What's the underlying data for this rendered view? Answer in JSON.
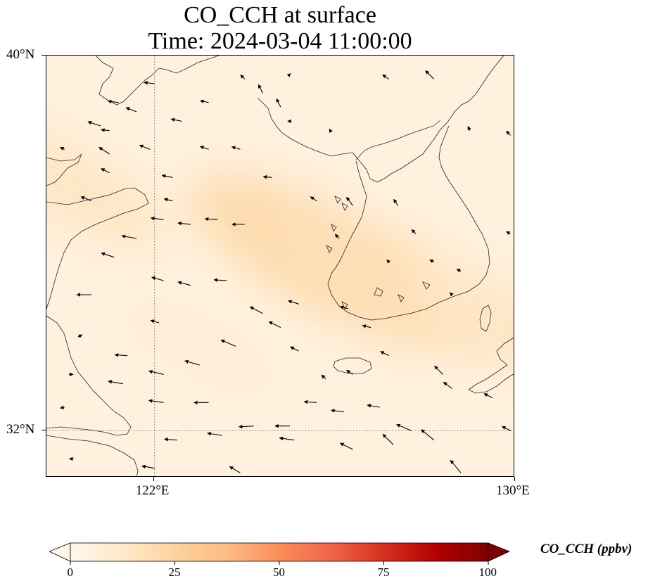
{
  "title": {
    "line1": "CO_CCH at surface",
    "line2": "Time: 2024-03-04 11:00:00"
  },
  "axes": {
    "lon_range": [
      119.6,
      130.0
    ],
    "lat_range": [
      31.0,
      40.0
    ],
    "lat_ticks": [
      {
        "value": 40,
        "label": "40°N"
      },
      {
        "value": 32,
        "label": "32°N"
      }
    ],
    "lon_ticks": [
      {
        "value": 122,
        "label": "122°E"
      },
      {
        "value": 130,
        "label": "130°E"
      }
    ],
    "gridlines": "dotted at 122°E and 32°N"
  },
  "colorbar": {
    "label": "CO_CCH (ppbv)",
    "min": 0,
    "max": 100,
    "extend": "both",
    "colormap": "OrRd",
    "ticks": [
      {
        "value": 0,
        "label": "0"
      },
      {
        "value": 25,
        "label": "25"
      },
      {
        "value": 50,
        "label": "50"
      },
      {
        "value": 75,
        "label": "75"
      },
      {
        "value": 100,
        "label": "100"
      }
    ],
    "colors": [
      "#fff7ec",
      "#fee8c8",
      "#fdd49e",
      "#fdbb84",
      "#fc8d59",
      "#ef6548",
      "#d7301f",
      "#b30000",
      "#7f0000"
    ]
  },
  "field": {
    "background_value": 5,
    "plumes": [
      {
        "lon": 125.9,
        "lat": 35.6,
        "peak": 22
      },
      {
        "lon": 127.5,
        "lat": 35.1,
        "peak": 18
      },
      {
        "lon": 120.0,
        "lat": 37.3,
        "peak": 14
      },
      {
        "lon": 129.8,
        "lat": 34.3,
        "peak": 13
      },
      {
        "lon": 123.0,
        "lat": 33.8,
        "peak": 8
      }
    ]
  },
  "wind_vectors": {
    "note": "",
    "arrows": [
      [
        121.6,
        36.1,
        -0.35,
        0.06
      ],
      [
        122.2,
        36.5,
        -0.3,
        0.04
      ],
      [
        122.8,
        36.4,
        -0.3,
        0.03
      ],
      [
        123.4,
        36.5,
        -0.3,
        0.02
      ],
      [
        124.0,
        36.4,
        -0.3,
        0.0
      ],
      [
        121.1,
        35.7,
        -0.3,
        0.1
      ],
      [
        122.2,
        35.2,
        -0.28,
        0.08
      ],
      [
        122.8,
        35.1,
        -0.3,
        0.08
      ],
      [
        123.6,
        35.2,
        -0.3,
        0.02
      ],
      [
        121.3,
        33.0,
        -0.35,
        0.06
      ],
      [
        122.2,
        33.2,
        -0.35,
        0.08
      ],
      [
        123.0,
        33.4,
        -0.35,
        0.1
      ],
      [
        123.8,
        33.8,
        -0.35,
        0.15
      ],
      [
        124.4,
        34.5,
        -0.3,
        0.16
      ],
      [
        124.8,
        34.2,
        -0.28,
        0.14
      ],
      [
        125.2,
        34.7,
        -0.25,
        0.08
      ],
      [
        121.4,
        33.6,
        -0.3,
        0.02
      ],
      [
        122.2,
        32.6,
        -0.35,
        0.05
      ],
      [
        123.2,
        32.6,
        -0.35,
        0.0
      ],
      [
        124.2,
        32.1,
        -0.35,
        -0.02
      ],
      [
        125.0,
        32.1,
        -0.35,
        0.0
      ],
      [
        125.6,
        32.6,
        -0.3,
        0.02
      ],
      [
        126.2,
        32.4,
        -0.3,
        0.04
      ],
      [
        127.0,
        32.5,
        -0.3,
        0.05
      ],
      [
        127.7,
        32.0,
        -0.35,
        0.15
      ],
      [
        128.2,
        31.8,
        -0.3,
        0.25
      ],
      [
        127.3,
        31.7,
        -0.25,
        0.25
      ],
      [
        126.4,
        31.6,
        -0.3,
        0.15
      ],
      [
        125.1,
        31.8,
        -0.35,
        0.05
      ],
      [
        123.5,
        31.9,
        -0.35,
        0.05
      ],
      [
        122.5,
        31.8,
        -0.3,
        0.02
      ],
      [
        122.0,
        31.2,
        -0.3,
        0.05
      ],
      [
        123.9,
        31.1,
        -0.25,
        0.15
      ],
      [
        128.8,
        31.1,
        -0.25,
        0.3
      ],
      [
        120.6,
        36.9,
        -0.25,
        0.1
      ],
      [
        120.8,
        38.5,
        -0.3,
        0.1
      ],
      [
        121.0,
        37.9,
        -0.25,
        0.16
      ],
      [
        121.6,
        38.8,
        -0.25,
        0.1
      ],
      [
        121.9,
        38.0,
        -0.25,
        0.1
      ],
      [
        121.2,
        39.0,
        -0.25,
        0.03
      ],
      [
        121.0,
        38.4,
        -0.2,
        0.02
      ],
      [
        122.0,
        39.4,
        -0.25,
        0.03
      ],
      [
        122.6,
        38.6,
        -0.25,
        0.05
      ],
      [
        123.2,
        38.0,
        -0.2,
        0.07
      ],
      [
        123.9,
        38.0,
        -0.2,
        0.06
      ],
      [
        124.6,
        37.4,
        -0.2,
        0.02
      ],
      [
        125.6,
        36.9,
        -0.15,
        0.1
      ],
      [
        126.1,
        36.1,
        -0.1,
        0.1
      ],
      [
        126.4,
        36.8,
        -0.15,
        0.2
      ],
      [
        127.4,
        36.8,
        -0.1,
        0.15
      ],
      [
        127.8,
        36.2,
        -0.1,
        0.1
      ],
      [
        128.2,
        35.6,
        -0.1,
        0.05
      ],
      [
        128.8,
        35.4,
        -0.1,
        0.05
      ],
      [
        128.6,
        34.9,
        -0.05,
        0.05
      ],
      [
        127.2,
        35.6,
        -0.05,
        0.05
      ],
      [
        126.3,
        34.6,
        -0.2,
        0.05
      ],
      [
        126.8,
        34.2,
        -0.2,
        0.05
      ],
      [
        127.2,
        33.6,
        -0.2,
        0.1
      ],
      [
        126.4,
        33.2,
        -0.15,
        0.1
      ],
      [
        125.2,
        33.7,
        -0.2,
        0.1
      ],
      [
        125.8,
        33.1,
        -0.1,
        0.1
      ],
      [
        128.4,
        33.2,
        -0.2,
        0.2
      ],
      [
        128.6,
        32.9,
        -0.2,
        0.15
      ],
      [
        129.5,
        32.7,
        -0.2,
        0.1
      ],
      [
        129.9,
        32.0,
        -0.2,
        0.1
      ],
      [
        129.9,
        36.2,
        -0.1,
        0.05
      ],
      [
        129.9,
        38.3,
        -0.1,
        0.1
      ],
      [
        129.0,
        38.4,
        -0.05,
        0.1
      ],
      [
        128.2,
        39.5,
        -0.2,
        0.2
      ],
      [
        127.2,
        39.5,
        -0.15,
        0.1
      ],
      [
        124.4,
        39.2,
        -0.1,
        0.2
      ],
      [
        124.8,
        38.9,
        -0.1,
        0.2
      ],
      [
        124.0,
        39.5,
        -0.1,
        0.1
      ],
      [
        125.0,
        39.6,
        0.02,
        0.02
      ],
      [
        120.1,
        33.2,
        0.1,
        0.0
      ],
      [
        120.3,
        34.0,
        0.1,
        0.05
      ],
      [
        120.0,
        32.5,
        -0.1,
        -0.02
      ],
      [
        120.2,
        31.4,
        -0.1,
        0.0
      ],
      [
        122.1,
        34.3,
        -0.2,
        0.06
      ],
      [
        120.6,
        34.9,
        -0.35,
        0.0
      ],
      [
        125.0,
        38.6,
        -0.05,
        0.0
      ],
      [
        125.9,
        38.4,
        -0.02,
        0.04
      ],
      [
        123.2,
        39.0,
        -0.2,
        0.04
      ],
      [
        122.4,
        37.4,
        -0.25,
        0.05
      ],
      [
        121.0,
        37.5,
        -0.2,
        0.1
      ],
      [
        122.4,
        36.9,
        -0.2,
        0.05
      ],
      [
        120.0,
        38.0,
        -0.1,
        0.05
      ]
    ]
  }
}
